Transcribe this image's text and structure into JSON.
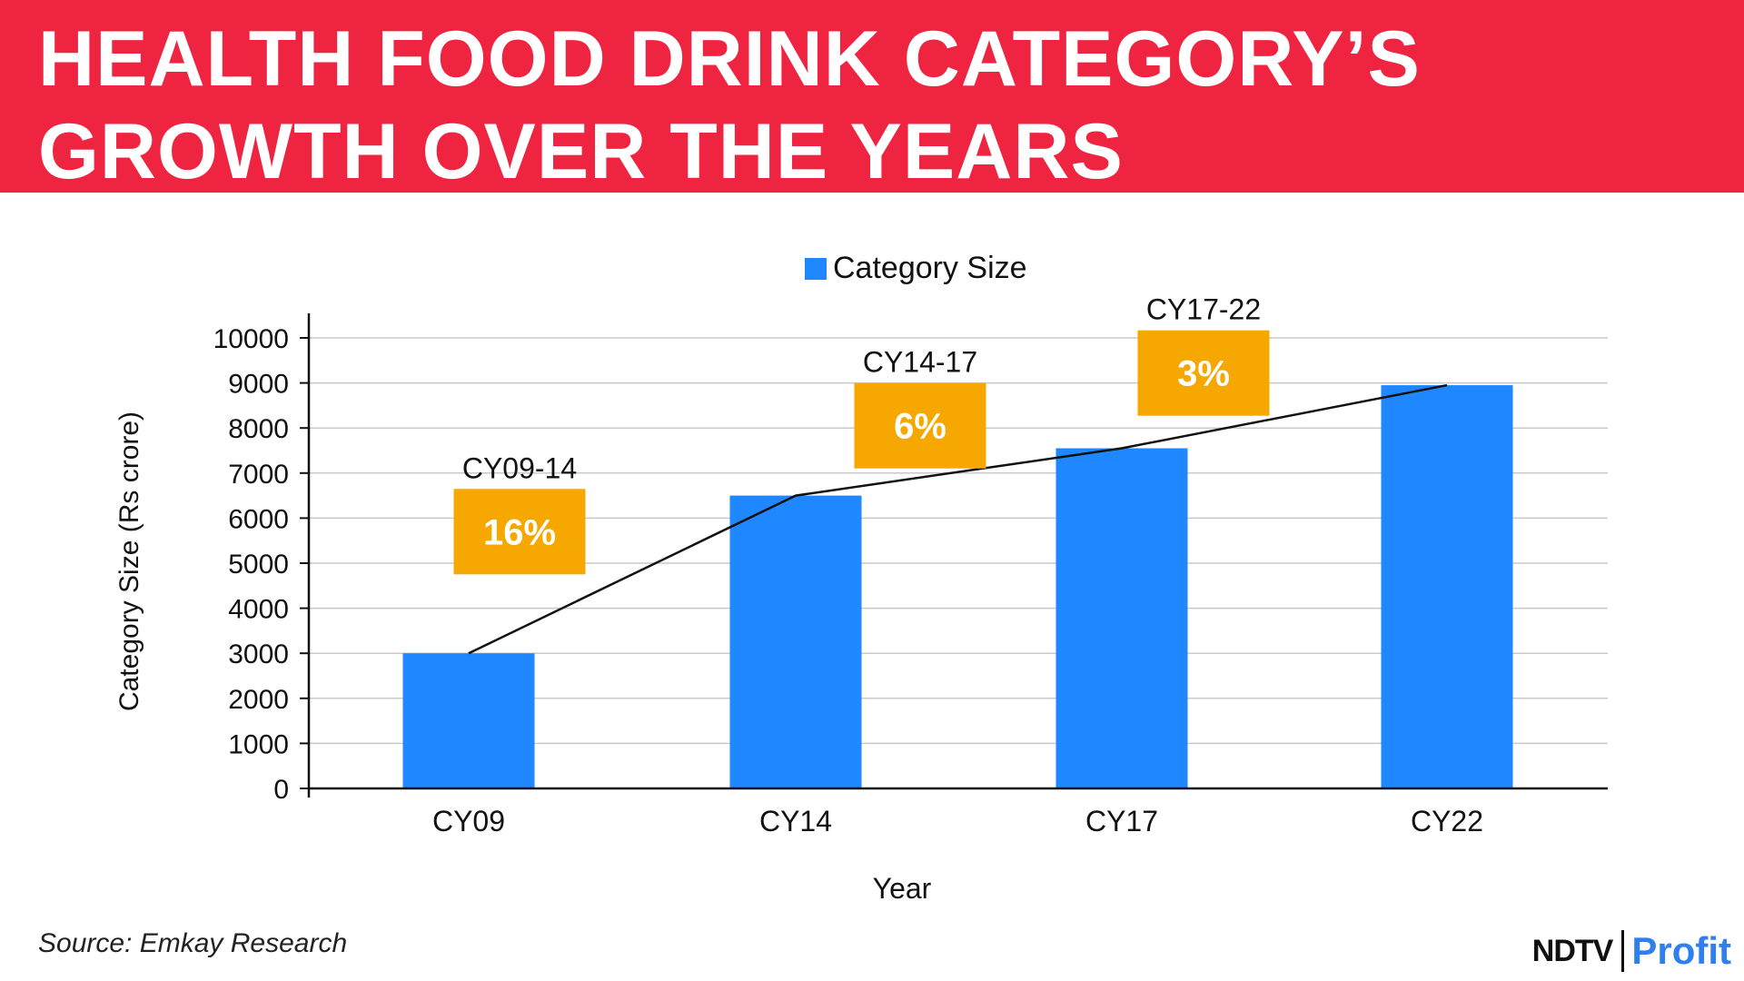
{
  "header": {
    "title": "HEALTH FOOD DRINK CATEGORY’S GROWTH OVER THE YEARS"
  },
  "footer": {
    "source": "Source: Emkay Research",
    "logo_left": "NDTV",
    "logo_right": "Profit"
  },
  "colors": {
    "banner": "#ee2440",
    "bar": "#1f87ff",
    "growth_box": "#f7a800",
    "growth_text": "#ffffff",
    "gridline": "#c8c8c8",
    "trend_line": "#111111"
  },
  "chart_data": {
    "type": "bar",
    "title": "",
    "xlabel": "Year",
    "ylabel": "Category Size (Rs crore)",
    "categories": [
      "CY09",
      "CY14",
      "CY17",
      "CY22"
    ],
    "series": [
      {
        "name": "Category Size",
        "values": [
          3000,
          6500,
          7550,
          8950
        ]
      }
    ],
    "ylim": [
      0,
      10000
    ],
    "yticks": [
      0,
      1000,
      2000,
      3000,
      4000,
      5000,
      6000,
      7000,
      8000,
      9000,
      10000
    ],
    "grid": true,
    "legend": "top-center",
    "trend_line": {
      "through_bar_tops": true
    },
    "annotations": [
      {
        "period": "CY09-14",
        "growth": "16%",
        "between": [
          "CY09",
          "CY14"
        ],
        "box_center_value": 5700
      },
      {
        "period": "CY14-17",
        "growth": "6%",
        "between": [
          "CY14",
          "CY17"
        ],
        "box_center_value": 8050
      },
      {
        "period": "CY17-22",
        "growth": "3%",
        "between": [
          "CY17",
          "CY22"
        ],
        "box_center_value": 9220
      }
    ]
  }
}
